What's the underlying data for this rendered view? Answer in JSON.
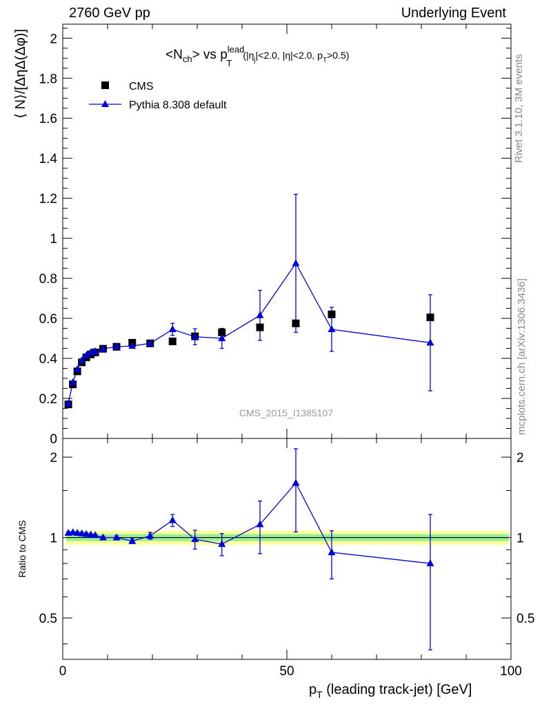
{
  "header": {
    "left": "2760 GeV pp",
    "right": "Underlying Event"
  },
  "side_labels": {
    "rivet": "Rivet 3.1.10,  3M events",
    "mcplots": "mcplots.cern.ch [arXiv:1306.3436]"
  },
  "watermark": "CMS_2015_I1385107",
  "chart_data": [
    {
      "type": "scatter",
      "title_parts": {
        "a": "<N",
        "a_sub": "ch",
        "b": "> vs p",
        "b_sup": "lead",
        "b_sub": "T",
        "cut": "(|η",
        "cut_sub": "j",
        "cut2": "|<2.0, |η|<2.0, p",
        "cut_sub2": "T",
        "cut3": ">0.5)"
      },
      "ylabel": "⟨ N⟩/[ΔηΔ(Δφ)]",
      "xlim": [
        0,
        100
      ],
      "ylim": [
        0,
        2.07
      ],
      "yticks": [
        "0",
        "0.2",
        "0.4",
        "0.6",
        "0.8",
        "1",
        "1.2",
        "1.4",
        "1.6",
        "1.8",
        "2"
      ],
      "legend": [
        {
          "name": "CMS",
          "marker": "square",
          "color": "#000000"
        },
        {
          "name": "Pythia 8.308 default",
          "marker": "triangle",
          "color": "#0000dd"
        }
      ],
      "series": [
        {
          "name": "CMS",
          "x": [
            1.25,
            2.25,
            3.25,
            4.25,
            5.25,
            6.25,
            7.25,
            9.0,
            12.0,
            15.5,
            19.5,
            24.5,
            29.5,
            35.5,
            44.0,
            52.0,
            60.0,
            82.0
          ],
          "y": [
            0.17,
            0.27,
            0.335,
            0.38,
            0.405,
            0.42,
            0.43,
            0.448,
            0.458,
            0.478,
            0.475,
            0.485,
            0.51,
            0.53,
            0.555,
            0.575,
            0.62,
            0.605
          ]
        },
        {
          "name": "Pythia 8.308 default",
          "x": [
            1.25,
            2.25,
            3.25,
            4.25,
            5.25,
            6.25,
            7.25,
            9.0,
            12.0,
            15.5,
            19.5,
            24.5,
            29.5,
            35.5,
            44.0,
            52.0,
            60.0,
            82.0
          ],
          "y": [
            0.175,
            0.28,
            0.345,
            0.39,
            0.415,
            0.43,
            0.435,
            0.448,
            0.458,
            0.462,
            0.475,
            0.545,
            0.508,
            0.5,
            0.615,
            0.875,
            0.545,
            0.478
          ],
          "err": [
            0.006,
            0.006,
            0.006,
            0.006,
            0.006,
            0.006,
            0.006,
            0.008,
            0.01,
            0.012,
            0.015,
            0.03,
            0.04,
            0.05,
            0.125,
            0.345,
            0.11,
            0.24
          ]
        }
      ]
    },
    {
      "type": "line",
      "ylabel": "Ratio to CMS",
      "xlabel_parts": {
        "a": "p",
        "a_sub": "T",
        "b": " (leading track-jet) [GeV]"
      },
      "xlim": [
        0,
        100
      ],
      "ylim": [
        0.35,
        2.35
      ],
      "log": true,
      "yticks": [
        "0.5",
        "1",
        "2"
      ],
      "xticks": [
        "0",
        "50",
        "100"
      ],
      "band_inner": 0.03,
      "band_outer": 0.06,
      "series": [
        {
          "name": "Pythia 8.308 default",
          "x": [
            1.25,
            2.25,
            3.25,
            4.25,
            5.25,
            6.25,
            7.25,
            9.0,
            12.0,
            15.5,
            19.5,
            24.5,
            29.5,
            35.5,
            44.0,
            52.0,
            60.0,
            82.0
          ],
          "y": [
            1.04,
            1.045,
            1.04,
            1.035,
            1.03,
            1.025,
            1.02,
            1.0,
            1.0,
            0.97,
            1.015,
            1.16,
            0.985,
            0.945,
            1.12,
            1.6,
            0.88,
            0.8
          ],
          "err": [
            0.01,
            0.01,
            0.01,
            0.01,
            0.01,
            0.01,
            0.01,
            0.012,
            0.015,
            0.02,
            0.03,
            0.06,
            0.08,
            0.09,
            0.25,
            0.55,
            0.18,
            0.42
          ]
        }
      ]
    }
  ]
}
